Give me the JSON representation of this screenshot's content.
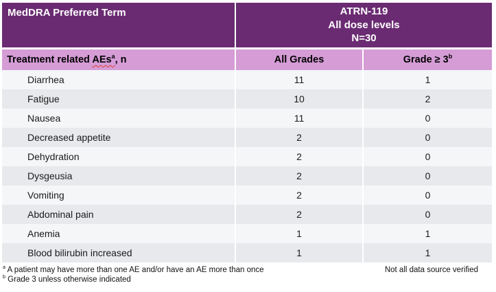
{
  "colors": {
    "header_bg": "#6A2B72",
    "subheader_bg": "#D59CD6",
    "row_light": "#F4F6F8",
    "row_dark": "#E7E9EC",
    "header_text": "#FFFFFF",
    "body_text": "#1A1A1A"
  },
  "table": {
    "col1_header": "MedDRA Preferred Term",
    "group_header": {
      "line1": "ATRN-119",
      "line2": "All dose levels",
      "line3": "N=30"
    },
    "subheader": {
      "col1_pre": "Treatment related ",
      "col1_underlined": "AEs",
      "col1_sup": "a",
      "col1_post": ", n",
      "col2": "All Grades",
      "col3_text": "Grade ≥ 3",
      "col3_sup": "b"
    },
    "rows": [
      {
        "term": "Diarrhea",
        "all_grades": "11",
        "grade3": "1"
      },
      {
        "term": "Fatigue",
        "all_grades": "10",
        "grade3": "2"
      },
      {
        "term": "Nausea",
        "all_grades": "11",
        "grade3": "0"
      },
      {
        "term": "Decreased appetite",
        "all_grades": "2",
        "grade3": "0"
      },
      {
        "term": "Dehydration",
        "all_grades": "2",
        "grade3": "0"
      },
      {
        "term": "Dysgeusia",
        "all_grades": "2",
        "grade3": "0"
      },
      {
        "term": "Vomiting",
        "all_grades": "2",
        "grade3": "0"
      },
      {
        "term": "Abdominal pain",
        "all_grades": "2",
        "grade3": "0"
      },
      {
        "term": "Anemia",
        "all_grades": "1",
        "grade3": "1"
      },
      {
        "term": "Blood bilirubin increased",
        "all_grades": "1",
        "grade3": "1"
      }
    ]
  },
  "footnotes": {
    "a_sup": "a",
    "a_text": "A patient may have more than one AE and/or have an AE more than once",
    "b_sup": "b",
    "b_text": "Grade 3 unless otherwise indicated",
    "right_note": "Not all data source verified"
  }
}
